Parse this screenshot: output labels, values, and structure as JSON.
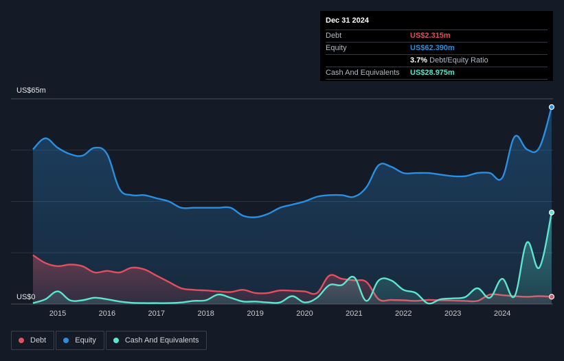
{
  "tooltip": {
    "date": "Dec 31 2024",
    "rows": [
      {
        "label": "Debt",
        "value": "US$2.315m",
        "color": "#e0505e"
      },
      {
        "label": "Equity",
        "value": "US$62.390m",
        "color": "#2a8fe0"
      },
      {
        "label": "",
        "value": "3.7%",
        "suffix": "Debt/Equity Ratio",
        "color": "#ffffff"
      },
      {
        "label": "Cash And Equivalents",
        "value": "US$28.975m",
        "color": "#5ee5cf"
      }
    ]
  },
  "legend": [
    {
      "label": "Debt",
      "color": "#e0505e"
    },
    {
      "label": "Equity",
      "color": "#2a8fe0"
    },
    {
      "label": "Cash And Equivalents",
      "color": "#5ee5cf"
    }
  ],
  "chart_data": {
    "type": "area",
    "title": "",
    "xlabel": "",
    "ylabel": "",
    "y_top_label": "US$65m",
    "y_bottom_label": "US$0",
    "ylim": [
      0,
      65
    ],
    "xlim": [
      2014.45,
      2025.0
    ],
    "x_ticks": [
      "2015",
      "2016",
      "2017",
      "2018",
      "2019",
      "2020",
      "2021",
      "2022",
      "2023",
      "2024"
    ],
    "series": [
      {
        "name": "Equity",
        "color": "#2a8fe0",
        "x": [
          2014.5,
          2014.75,
          2015.0,
          2015.25,
          2015.5,
          2015.75,
          2016.0,
          2016.25,
          2016.5,
          2016.75,
          2017.0,
          2017.25,
          2017.5,
          2017.75,
          2018.0,
          2018.25,
          2018.5,
          2018.75,
          2019.0,
          2019.25,
          2019.5,
          2019.75,
          2020.0,
          2020.25,
          2020.5,
          2020.75,
          2021.0,
          2021.25,
          2021.5,
          2021.75,
          2022.0,
          2022.25,
          2022.5,
          2022.75,
          2023.0,
          2023.25,
          2023.5,
          2023.75,
          2024.0,
          2024.25,
          2024.5,
          2024.75,
          2025.0
        ],
        "values": [
          49,
          52.5,
          49.5,
          47.5,
          47,
          49.5,
          47.5,
          36.5,
          34.5,
          34.5,
          33.5,
          32.5,
          30.5,
          30.5,
          30.5,
          30.5,
          30.5,
          28,
          27.5,
          28.5,
          30.5,
          31.5,
          32.5,
          34,
          34.5,
          34.5,
          34,
          37,
          44,
          43.5,
          41.5,
          41.5,
          41.5,
          41,
          40.5,
          40.5,
          41.5,
          41.5,
          40,
          53,
          49,
          49.5,
          62.4
        ]
      },
      {
        "name": "Debt",
        "color": "#e0505e",
        "x": [
          2014.5,
          2014.75,
          2015.0,
          2015.25,
          2015.5,
          2015.75,
          2016.0,
          2016.25,
          2016.5,
          2016.75,
          2017.0,
          2017.25,
          2017.5,
          2017.75,
          2018.0,
          2018.25,
          2018.5,
          2018.75,
          2019.0,
          2019.25,
          2019.5,
          2019.75,
          2020.0,
          2020.25,
          2020.5,
          2020.75,
          2021.0,
          2021.25,
          2021.5,
          2021.75,
          2022.0,
          2022.25,
          2022.5,
          2022.75,
          2023.0,
          2023.25,
          2023.5,
          2023.75,
          2024.0,
          2024.25,
          2024.5,
          2024.75,
          2025.0
        ],
        "values": [
          15.5,
          13,
          12,
          12.5,
          12,
          10,
          10.5,
          10,
          11.5,
          11,
          9,
          7,
          5,
          4.5,
          4.3,
          4,
          3.8,
          4.5,
          3.5,
          3.5,
          4.3,
          4.2,
          4,
          3.5,
          9,
          8,
          7.5,
          7,
          1.5,
          1.3,
          1.2,
          1,
          1.3,
          1.2,
          1.1,
          1,
          1,
          3,
          2.8,
          2.5,
          2.3,
          2.5,
          2.3
        ]
      },
      {
        "name": "Cash And Equivalents",
        "color": "#5ee5cf",
        "x": [
          2014.5,
          2014.75,
          2015.0,
          2015.25,
          2015.5,
          2015.75,
          2016.0,
          2016.25,
          2016.5,
          2016.75,
          2017.0,
          2017.25,
          2017.5,
          2017.75,
          2018.0,
          2018.25,
          2018.5,
          2018.75,
          2019.0,
          2019.25,
          2019.5,
          2019.75,
          2020.0,
          2020.25,
          2020.5,
          2020.75,
          2021.0,
          2021.25,
          2021.5,
          2021.75,
          2022.0,
          2022.25,
          2022.5,
          2022.75,
          2023.0,
          2023.25,
          2023.5,
          2023.75,
          2024.0,
          2024.25,
          2024.5,
          2024.75,
          2025.0
        ],
        "values": [
          0.3,
          1.5,
          4,
          1.2,
          1.2,
          2,
          1.5,
          0.8,
          0.4,
          0.3,
          0.3,
          0.3,
          0.5,
          1,
          1.2,
          3,
          2,
          0.8,
          0.8,
          0.5,
          0.5,
          2.5,
          0.5,
          2,
          6,
          6,
          8.5,
          1,
          7.5,
          7.5,
          4.5,
          3.5,
          0.2,
          1.5,
          1.8,
          2.2,
          5,
          2,
          8,
          2.5,
          19.5,
          11.5,
          29
        ]
      }
    ]
  }
}
